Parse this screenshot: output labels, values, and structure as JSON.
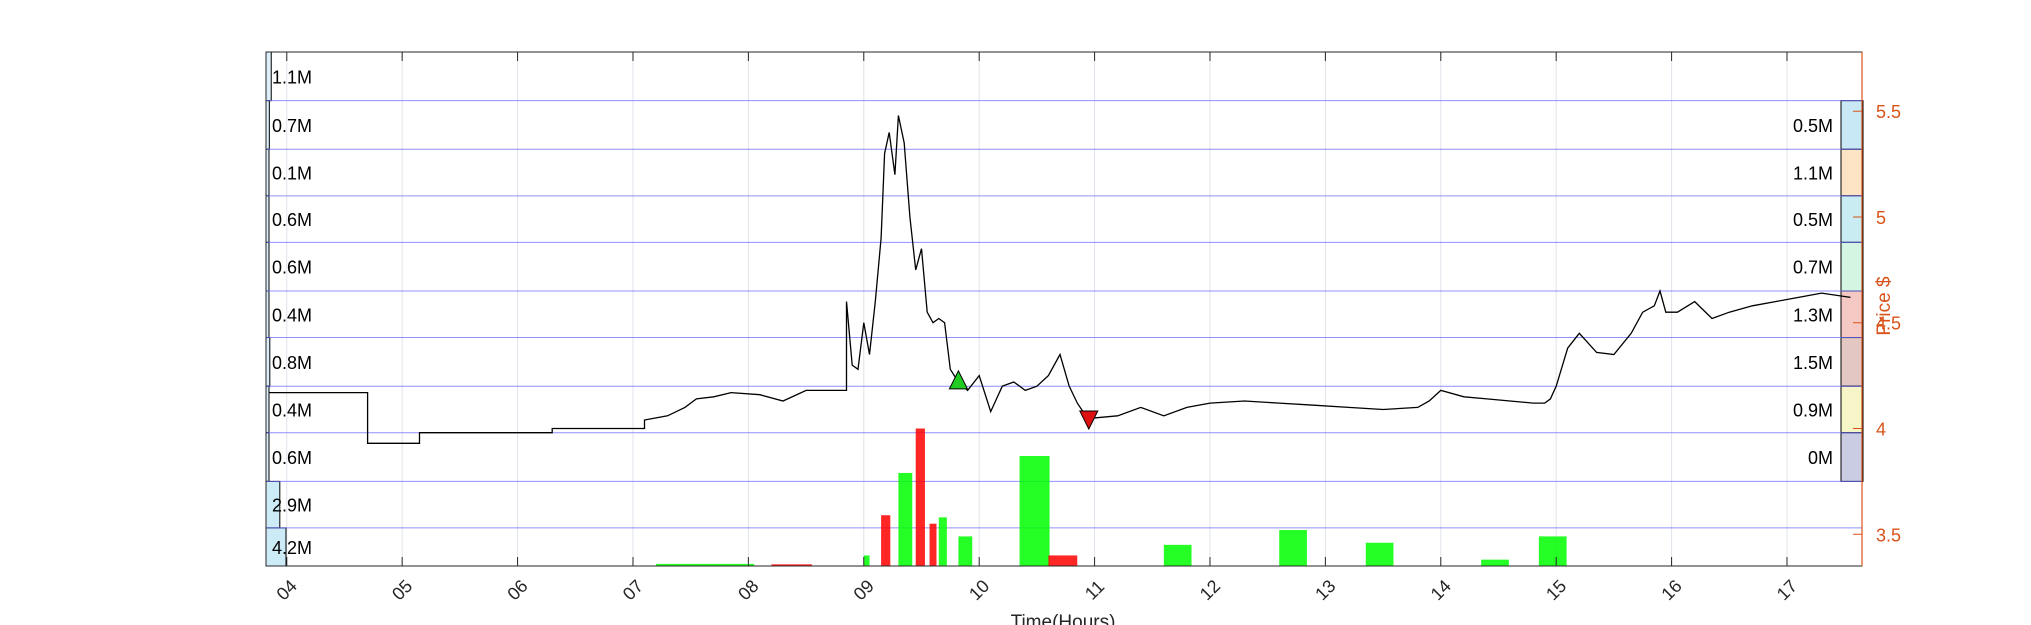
{
  "chart_data": {
    "type": "line",
    "xlabel": "Time(Hours)",
    "ylabel": "Price $",
    "x_ticks": [
      "04",
      "05",
      "06",
      "07",
      "08",
      "09",
      "10",
      "11",
      "12",
      "13",
      "14",
      "15",
      "16",
      "17"
    ],
    "xlim": [
      3.82,
      17.65
    ],
    "ylim": [
      3.35,
      5.78
    ],
    "y_ticks": [
      {
        "value": 3.5,
        "label": "3.5"
      },
      {
        "value": 4,
        "label": "4"
      },
      {
        "value": 4.5,
        "label": "4.5"
      },
      {
        "value": 5,
        "label": "5"
      },
      {
        "value": 5.5,
        "label": "5.5"
      }
    ],
    "grid": true,
    "colors": {
      "price_line": "#000000",
      "right_axis": "#d95319",
      "grid": "#dfe3ea",
      "band_line": "#6b6bff",
      "up_volume": "#00ff00",
      "down_volume": "#ff0000",
      "buy_marker": "#22cc22",
      "sell_marker": "#dd1111"
    },
    "volume_profile_left": {
      "side": "left",
      "bands": [
        {
          "price_low": 5.55,
          "price_high": 5.78,
          "label": "1.1M",
          "value": 1.1
        },
        {
          "price_low": 5.32,
          "price_high": 5.55,
          "label": "0.7M",
          "value": 0.7
        },
        {
          "price_low": 5.1,
          "price_high": 5.32,
          "label": "0.1M",
          "value": 0.1
        },
        {
          "price_low": 4.88,
          "price_high": 5.1,
          "label": "0.6M",
          "value": 0.6
        },
        {
          "price_low": 4.65,
          "price_high": 4.88,
          "label": "0.6M",
          "value": 0.6
        },
        {
          "price_low": 4.43,
          "price_high": 4.65,
          "label": "0.4M",
          "value": 0.4
        },
        {
          "price_low": 4.2,
          "price_high": 4.43,
          "label": "0.8M",
          "value": 0.8
        },
        {
          "price_low": 3.98,
          "price_high": 4.2,
          "label": "0.4M",
          "value": 0.4
        },
        {
          "price_low": 3.75,
          "price_high": 3.98,
          "label": "0.6M",
          "value": 0.6
        },
        {
          "price_low": 3.53,
          "price_high": 3.75,
          "label": "2.9M",
          "value": 2.9
        },
        {
          "price_low": 3.3,
          "price_high": 3.53,
          "label": "4.2M",
          "value": 4.2
        }
      ]
    },
    "volume_profile_right": {
      "side": "right",
      "bands": [
        {
          "price_low": 5.32,
          "price_high": 5.55,
          "label": "0.5M",
          "value": 0.5,
          "color": "#c8e8f6"
        },
        {
          "price_low": 5.1,
          "price_high": 5.32,
          "label": "1.1M",
          "value": 1.1,
          "color": "#fbe3c4"
        },
        {
          "price_low": 4.88,
          "price_high": 5.1,
          "label": "0.5M",
          "value": 0.5,
          "color": "#c8ecf2"
        },
        {
          "price_low": 4.65,
          "price_high": 4.88,
          "label": "0.7M",
          "value": 0.7,
          "color": "#d4f5e2"
        },
        {
          "price_low": 4.43,
          "price_high": 4.65,
          "label": "1.3M",
          "value": 1.3,
          "color": "#f4c9c3"
        },
        {
          "price_low": 4.2,
          "price_high": 4.43,
          "label": "1.5M",
          "value": 1.5,
          "color": "#e3c7c2"
        },
        {
          "price_low": 3.98,
          "price_high": 4.2,
          "label": "0.9M",
          "value": 0.9,
          "color": "#f5f5c8"
        },
        {
          "price_low": 3.75,
          "price_high": 3.98,
          "label": "0M",
          "value": 0,
          "color": "#c9cce2"
        }
      ]
    },
    "series": [
      {
        "kind": "price",
        "x": [
          3.85,
          4.7,
          4.7,
          5.15,
          5.15,
          6.3,
          6.3,
          7.1,
          7.1,
          7.3,
          7.45,
          7.55,
          7.7,
          7.85,
          8.1,
          8.3,
          8.5,
          8.85,
          8.85,
          8.9,
          8.95,
          9.0,
          9.05,
          9.1,
          9.15,
          9.18,
          9.22,
          9.27,
          9.3,
          9.35,
          9.4,
          9.45,
          9.5,
          9.55,
          9.6,
          9.65,
          9.7,
          9.75,
          9.82,
          9.9,
          10.0,
          10.1,
          10.2,
          10.3,
          10.4,
          10.5,
          10.6,
          10.7,
          10.78,
          10.85,
          10.9,
          10.95,
          11.0,
          11.2,
          11.4,
          11.6,
          11.8,
          12.0,
          12.3,
          12.6,
          12.9,
          13.2,
          13.5,
          13.8,
          13.9,
          14.0,
          14.2,
          14.4,
          14.6,
          14.8,
          14.9,
          14.95,
          15.0,
          15.1,
          15.2,
          15.35,
          15.5,
          15.65,
          15.75,
          15.85,
          15.9,
          15.95,
          16.05,
          16.2,
          16.35,
          16.5,
          16.7,
          16.9,
          17.1,
          17.3,
          17.55
        ],
        "y": [
          4.17,
          4.17,
          3.93,
          3.93,
          3.98,
          3.98,
          4.0,
          4.0,
          4.04,
          4.06,
          4.1,
          4.14,
          4.15,
          4.17,
          4.16,
          4.13,
          4.18,
          4.18,
          4.6,
          4.3,
          4.28,
          4.5,
          4.35,
          4.6,
          4.9,
          5.3,
          5.4,
          5.2,
          5.48,
          5.35,
          5.0,
          4.75,
          4.85,
          4.55,
          4.5,
          4.52,
          4.5,
          4.28,
          4.22,
          4.18,
          4.25,
          4.08,
          4.2,
          4.22,
          4.18,
          4.2,
          4.25,
          4.35,
          4.2,
          4.12,
          4.08,
          4.07,
          4.05,
          4.06,
          4.1,
          4.06,
          4.1,
          4.12,
          4.13,
          4.12,
          4.11,
          4.1,
          4.09,
          4.1,
          4.13,
          4.18,
          4.15,
          4.14,
          4.13,
          4.12,
          4.12,
          4.14,
          4.2,
          4.38,
          4.45,
          4.36,
          4.35,
          4.45,
          4.55,
          4.58,
          4.65,
          4.55,
          4.55,
          4.6,
          4.52,
          4.55,
          4.58,
          4.6,
          4.62,
          4.64,
          4.62
        ]
      },
      {
        "kind": "volume",
        "bars": [
          {
            "x": 7.2,
            "width": 0.85,
            "volume": 0.01,
            "up": true
          },
          {
            "x": 8.2,
            "width": 0.35,
            "volume": 0.008,
            "up": false
          },
          {
            "x": 9.0,
            "width": 0.05,
            "volume": 0.05,
            "up": true
          },
          {
            "x": 9.15,
            "width": 0.08,
            "volume": 0.24,
            "up": false
          },
          {
            "x": 9.3,
            "width": 0.12,
            "volume": 0.44,
            "up": true
          },
          {
            "x": 9.45,
            "width": 0.08,
            "volume": 0.65,
            "up": false
          },
          {
            "x": 9.57,
            "width": 0.06,
            "volume": 0.2,
            "up": false
          },
          {
            "x": 9.65,
            "width": 0.07,
            "volume": 0.23,
            "up": true
          },
          {
            "x": 9.82,
            "width": 0.12,
            "volume": 0.14,
            "up": true
          },
          {
            "x": 10.35,
            "width": 0.26,
            "volume": 0.52,
            "up": true
          },
          {
            "x": 10.6,
            "width": 0.25,
            "volume": 0.05,
            "up": false
          },
          {
            "x": 11.6,
            "width": 0.24,
            "volume": 0.1,
            "up": true
          },
          {
            "x": 12.6,
            "width": 0.24,
            "volume": 0.17,
            "up": true
          },
          {
            "x": 13.35,
            "width": 0.24,
            "volume": 0.11,
            "up": true
          },
          {
            "x": 14.35,
            "width": 0.24,
            "volume": 0.03,
            "up": true
          },
          {
            "x": 14.85,
            "width": 0.24,
            "volume": 0.14,
            "up": true
          }
        ]
      }
    ],
    "markers": [
      {
        "type": "buy",
        "shape": "triangle-up",
        "x": 9.82,
        "y": 4.23
      },
      {
        "type": "sell",
        "shape": "triangle-down",
        "x": 10.95,
        "y": 4.04
      }
    ]
  }
}
